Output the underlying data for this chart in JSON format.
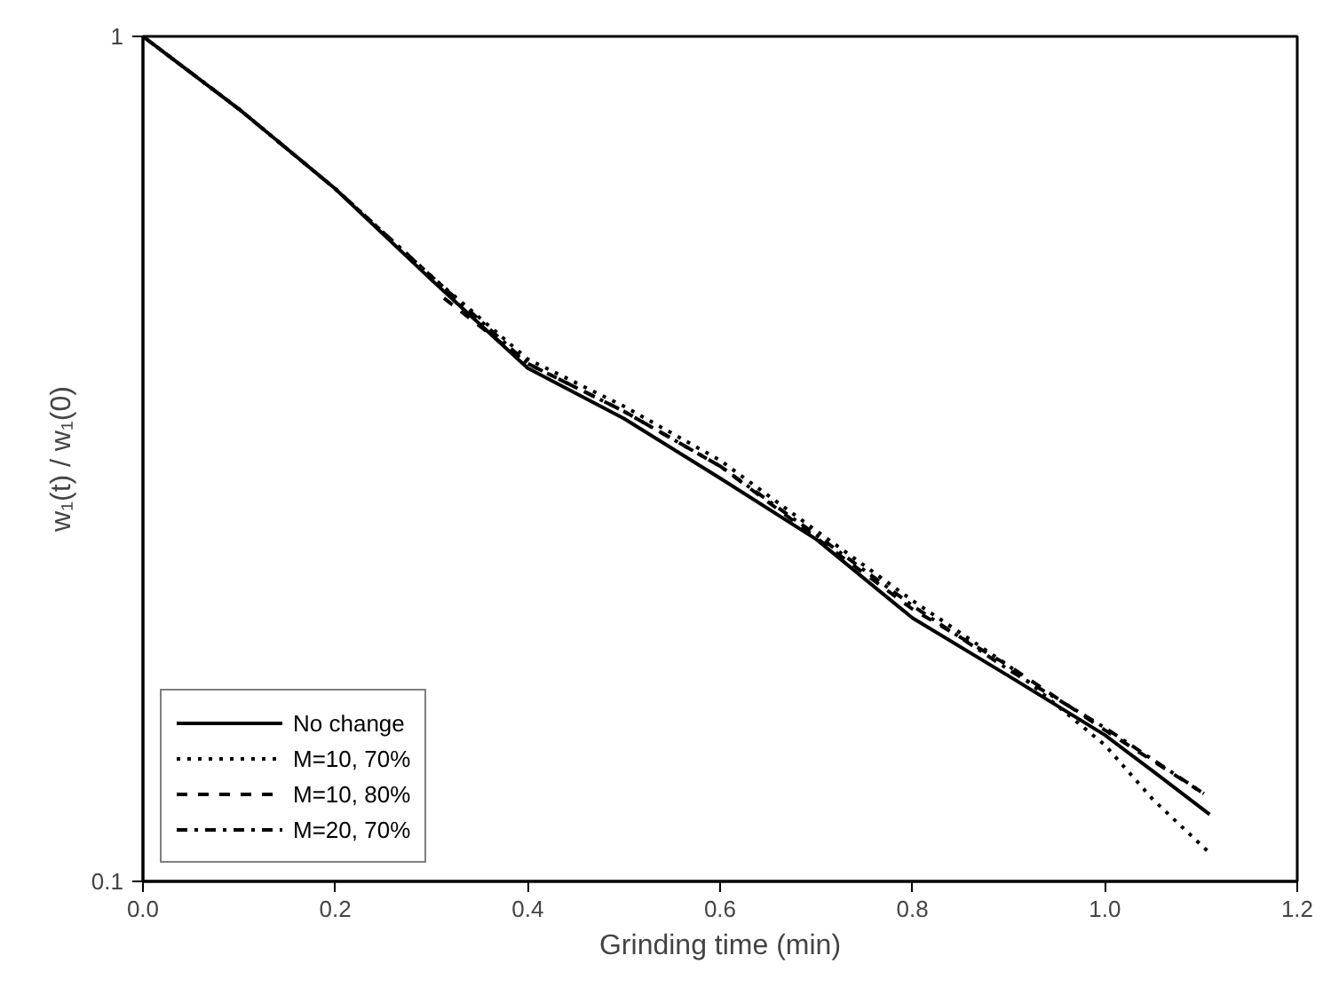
{
  "chart_data": {
    "type": "line",
    "xlabel": "Grinding time (min)",
    "ylabel": "w₁(t) / w₁(0)",
    "xlim": [
      0,
      1.2
    ],
    "xticks": [
      {
        "value": 0,
        "label": "0.0"
      },
      {
        "value": 0.2,
        "label": "0.2"
      },
      {
        "value": 0.4,
        "label": "0.4"
      },
      {
        "value": 0.6,
        "label": "0.6"
      },
      {
        "value": 0.8,
        "label": "0.8"
      },
      {
        "value": 1.0,
        "label": "1.0"
      },
      {
        "value": 1.2,
        "label": "1.2"
      }
    ],
    "ylim": [
      0.1,
      1
    ],
    "yticks": [
      0.1,
      1
    ],
    "log": "y",
    "grid": false,
    "legend": "bottom left",
    "series": [
      {
        "name": "No change",
        "color": "#000000",
        "line_style": "solid",
        "x": [
          0,
          0.1,
          0.2,
          0.3,
          0.4,
          0.5,
          0.6,
          0.7,
          0.8,
          0.9,
          1.0,
          1.05,
          1.109
        ],
        "values": [
          1,
          0.82,
          0.66,
          0.515,
          0.405,
          0.353,
          0.3,
          0.254,
          0.205,
          0.175,
          0.149,
          0.135,
          0.12
        ]
      },
      {
        "name": "M=10, 70%",
        "color": "#000000",
        "line_style": "dotted",
        "x": [
          0,
          0.1,
          0.2,
          0.3,
          0.4,
          0.5,
          0.6,
          0.7,
          0.8,
          0.9,
          1.0,
          1.05,
          1.109
        ],
        "values": [
          1,
          0.82,
          0.66,
          0.52,
          0.415,
          0.365,
          0.315,
          0.26,
          0.215,
          0.18,
          0.145,
          0.125,
          0.108
        ]
      },
      {
        "name": "M=10, 80%",
        "color": "#000000",
        "line_style": "dashed",
        "x": [
          0.313,
          0.4,
          0.5,
          0.6,
          0.7,
          0.8,
          0.9,
          1.0,
          1.103
        ],
        "values": [
          0.49,
          0.41,
          0.36,
          0.31,
          0.255,
          0.21,
          0.18,
          0.151,
          0.127
        ]
      },
      {
        "name": "M=20, 70%",
        "color": "#000000",
        "line_style": "dashdot",
        "x": [
          0,
          0.1,
          0.2,
          0.3,
          0.4,
          0.5,
          0.6,
          0.7,
          0.8,
          0.9,
          1.0,
          1.103
        ],
        "values": [
          1,
          0.82,
          0.66,
          0.52,
          0.41,
          0.36,
          0.31,
          0.257,
          0.212,
          0.178,
          0.152,
          0.127
        ]
      }
    ]
  }
}
